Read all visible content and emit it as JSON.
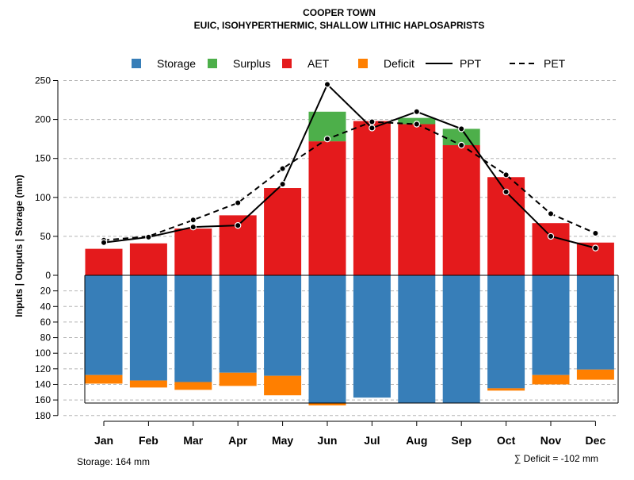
{
  "chart_data": {
    "type": "bar",
    "title": "COOPER TOWN",
    "subtitle": "EUIC, ISOHYPERTHERMIC, SHALLOW LITHIC HAPLOSAPRISTS",
    "ylabel": "Inputs | Outputs | Storage    (mm)",
    "upper_ylim": [
      0,
      250
    ],
    "upper_ticks": [
      "0",
      "50",
      "100",
      "150",
      "200",
      "250"
    ],
    "lower_ylim": [
      0,
      180
    ],
    "lower_ticks": [
      "20",
      "40",
      "60",
      "80",
      "100",
      "120",
      "140",
      "160",
      "180"
    ],
    "categories": [
      "Jan",
      "Feb",
      "Mar",
      "Apr",
      "May",
      "Jun",
      "Jul",
      "Aug",
      "Sep",
      "Oct",
      "Nov",
      "Dec"
    ],
    "series": [
      {
        "name": "AET",
        "values": [
          34,
          41,
          60,
          77,
          112,
          172,
          198,
          194,
          167,
          126,
          67,
          42
        ]
      },
      {
        "name": "Surplus",
        "values": [
          0,
          0,
          0,
          0,
          0,
          38,
          0,
          8,
          21,
          0,
          0,
          0
        ]
      },
      {
        "name": "PPT",
        "values": [
          42,
          49,
          62,
          64,
          117,
          245,
          189,
          210,
          188,
          107,
          50,
          35
        ]
      },
      {
        "name": "PET",
        "values": [
          45,
          50,
          71,
          93,
          137,
          175,
          197,
          194,
          167,
          129,
          79,
          54
        ]
      },
      {
        "name": "Storage",
        "values": [
          128,
          135,
          137,
          125,
          129,
          164,
          157,
          164,
          164,
          145,
          128,
          121
        ]
      },
      {
        "name": "Deficit",
        "values": [
          -11,
          -9,
          -10,
          -17,
          -25,
          -3,
          0,
          0,
          0,
          -3,
          -12,
          -13
        ]
      }
    ],
    "legend": [
      {
        "name": "Storage",
        "kind": "box",
        "color": "#377EB8"
      },
      {
        "name": "Surplus",
        "kind": "box",
        "color": "#4DAF4A"
      },
      {
        "name": "AET",
        "kind": "box",
        "color": "#E41A1C"
      },
      {
        "name": "Deficit",
        "kind": "box",
        "color": "#FF7F00"
      },
      {
        "name": "PPT",
        "kind": "solid-line",
        "color": "#000000"
      },
      {
        "name": "PET",
        "kind": "dashed-line",
        "color": "#000000"
      }
    ],
    "storage_capacity": 164,
    "storage_note": "Storage: 164 mm",
    "deficit_note": "∑ Deficit = -102 mm",
    "grid": true,
    "legend_position": "top"
  }
}
